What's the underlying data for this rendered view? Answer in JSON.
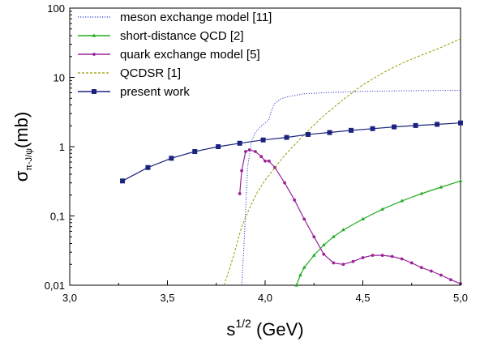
{
  "chart_data": {
    "type": "line",
    "xlabel": {
      "base": "s",
      "sup": "1/2",
      "unit": " (GeV)"
    },
    "ylabel": {
      "base": "σ",
      "sub": "π-J/ψ",
      "unit": "(mb)"
    },
    "xlim": [
      3.0,
      5.0
    ],
    "ylim": [
      0.01,
      100
    ],
    "yscale": "log",
    "grid": false,
    "legend_position": "top-left",
    "x_ticks": [
      {
        "value": 3.0,
        "label": "3,0"
      },
      {
        "value": 3.5,
        "label": "3,5"
      },
      {
        "value": 4.0,
        "label": "4,0"
      },
      {
        "value": 4.5,
        "label": "4,5"
      },
      {
        "value": 5.0,
        "label": "5,0"
      }
    ],
    "y_ticks": [
      {
        "value": 0.01,
        "label": "0,01"
      },
      {
        "value": 0.1,
        "label": "0,1"
      },
      {
        "value": 1,
        "label": "1"
      },
      {
        "value": 10,
        "label": "10"
      },
      {
        "value": 100,
        "label": "100"
      }
    ],
    "series": [
      {
        "name": "meson exchange model [11]",
        "color": "#3344cc",
        "style": "dotted",
        "marker": "none",
        "x": [
          3.88,
          3.89,
          3.9,
          3.91,
          3.93,
          3.95,
          3.98,
          4.01,
          4.02,
          4.03,
          4.05,
          4.08,
          4.12,
          4.2,
          4.3,
          4.5,
          4.7,
          5.0
        ],
        "y": [
          0.01,
          0.03,
          0.12,
          0.5,
          1.2,
          1.6,
          2.0,
          2.3,
          2.5,
          3.2,
          4.2,
          4.9,
          5.3,
          5.8,
          6.0,
          6.3,
          6.4,
          6.5
        ]
      },
      {
        "name": "short-distance QCD [2]",
        "color": "#22aa22",
        "style": "solid",
        "marker": "triangle",
        "x": [
          4.16,
          4.18,
          4.2,
          4.25,
          4.3,
          4.35,
          4.4,
          4.5,
          4.6,
          4.7,
          4.8,
          4.9,
          5.0
        ],
        "y": [
          0.01,
          0.014,
          0.018,
          0.027,
          0.038,
          0.05,
          0.063,
          0.09,
          0.125,
          0.165,
          0.21,
          0.26,
          0.32
        ]
      },
      {
        "name": "quark exchange model [5]",
        "color": "#992299",
        "style": "solid",
        "marker": "dot",
        "x": [
          3.87,
          3.88,
          3.9,
          3.92,
          3.95,
          3.98,
          4.0,
          4.02,
          4.05,
          4.1,
          4.15,
          4.2,
          4.25,
          4.3,
          4.35,
          4.4,
          4.45,
          4.5,
          4.55,
          4.6,
          4.65,
          4.7,
          4.75,
          4.8,
          4.85,
          4.9,
          4.95,
          5.0
        ],
        "y": [
          0.21,
          0.45,
          0.85,
          0.9,
          0.85,
          0.72,
          0.62,
          0.62,
          0.5,
          0.3,
          0.17,
          0.09,
          0.05,
          0.028,
          0.021,
          0.02,
          0.022,
          0.025,
          0.027,
          0.027,
          0.026,
          0.024,
          0.021,
          0.018,
          0.016,
          0.014,
          0.012,
          0.0105
        ]
      },
      {
        "name": "QCDSR [1]",
        "color": "#999900",
        "style": "dashed",
        "marker": "none",
        "x": [
          3.79,
          3.82,
          3.85,
          3.88,
          3.92,
          3.96,
          4.0,
          4.1,
          4.2,
          4.3,
          4.4,
          4.5,
          4.6,
          4.7,
          4.8,
          4.9,
          5.0
        ],
        "y": [
          0.01,
          0.018,
          0.035,
          0.07,
          0.13,
          0.22,
          0.33,
          0.75,
          1.5,
          2.8,
          4.8,
          7.8,
          11.5,
          16,
          21,
          27,
          36
        ]
      },
      {
        "name": "present work",
        "color": "#1a237e",
        "style": "solid",
        "marker": "square",
        "x": [
          3.27,
          3.4,
          3.52,
          3.64,
          3.76,
          3.87,
          3.99,
          4.11,
          4.22,
          4.33,
          4.44,
          4.55,
          4.66,
          4.77,
          4.88,
          5.0
        ],
        "y": [
          0.32,
          0.5,
          0.68,
          0.85,
          1.0,
          1.12,
          1.25,
          1.36,
          1.5,
          1.6,
          1.72,
          1.82,
          1.93,
          2.02,
          2.1,
          2.2
        ]
      }
    ]
  }
}
